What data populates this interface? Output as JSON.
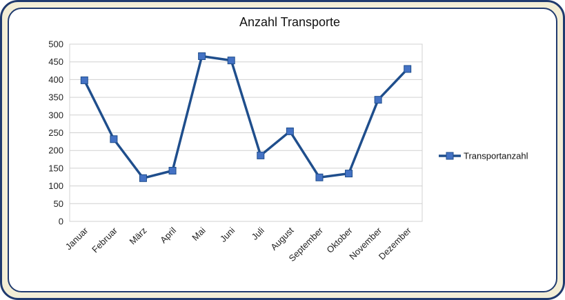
{
  "chart_data": {
    "type": "line",
    "title": "Anzahl Transporte",
    "xlabel": "",
    "ylabel": "",
    "categories": [
      "Januar",
      "Februar",
      "März",
      "April",
      "Mai",
      "Juni",
      "Juli",
      "August",
      "September",
      "Oktober",
      "November",
      "Dezember"
    ],
    "series": [
      {
        "name": "Transportanzahl",
        "values": [
          398,
          232,
          122,
          143,
          466,
          454,
          186,
          254,
          124,
          135,
          343,
          430
        ],
        "color": "#1f4e8c",
        "marker_color": "#4472c4"
      }
    ],
    "ylim": [
      0,
      500
    ],
    "yticks": [
      0,
      50,
      100,
      150,
      200,
      250,
      300,
      350,
      400,
      450,
      500
    ],
    "grid": true,
    "legend_position": "right"
  }
}
